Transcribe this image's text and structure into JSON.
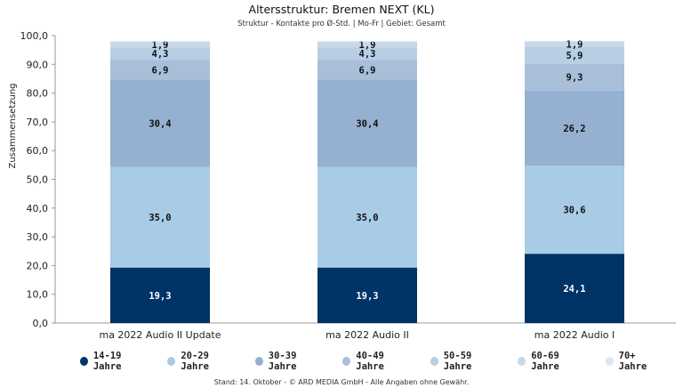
{
  "chart_data": {
    "type": "bar",
    "stacked": true,
    "title": "Altersstruktur: Bremen NEXT (KL)",
    "subtitle": "Struktur - Kontakte pro Ø-Std. | Mo-Fr | Gebiet: Gesamt",
    "ylabel": "Zusammensetzung",
    "xlabel": "",
    "ylim": [
      0,
      100
    ],
    "yticks": [
      "0,0",
      "10,0",
      "20,0",
      "30,0",
      "40,0",
      "50,0",
      "60,0",
      "70,0",
      "80,0",
      "90,0",
      "100,0"
    ],
    "categories": [
      "ma 2022 Audio II Update",
      "ma 2022 Audio II",
      "ma 2022 Audio I"
    ],
    "series": [
      {
        "name": "14-19 Jahre",
        "color": "#003366",
        "values": [
          19.3,
          19.3,
          24.1
        ],
        "labels": [
          "19,3",
          "19,3",
          "24,1"
        ]
      },
      {
        "name": "20-29 Jahre",
        "color": "#a8cbe6",
        "values": [
          35.0,
          35.0,
          30.6
        ],
        "labels": [
          "35,0",
          "35,0",
          "30,6"
        ]
      },
      {
        "name": "30-39 Jahre",
        "color": "#95b0d0",
        "values": [
          30.4,
          30.4,
          26.2
        ],
        "labels": [
          "30,4",
          "30,4",
          "26,2"
        ]
      },
      {
        "name": "40-49 Jahre",
        "color": "#a9bfd9",
        "values": [
          6.9,
          6.9,
          9.3
        ],
        "labels": [
          "6,9",
          "6,9",
          "9,3"
        ]
      },
      {
        "name": "50-59 Jahre",
        "color": "#b8cee4",
        "values": [
          4.3,
          4.3,
          5.9
        ],
        "labels": [
          "4,3",
          "4,3",
          "5,9"
        ]
      },
      {
        "name": "60-69 Jahre",
        "color": "#c8d8ea",
        "values": [
          1.9,
          1.9,
          1.9
        ],
        "labels": [
          "1,9",
          "1,9",
          "1,9"
        ]
      },
      {
        "name": "70+ Jahre",
        "color": "#dce6f1",
        "values": [
          0.3,
          0.3,
          0.1
        ],
        "labels": [
          "",
          "",
          ""
        ]
      }
    ],
    "grid": false,
    "legend_position": "bottom"
  },
  "footer": "Stand: 14. Oktober - © ARD MEDIA GmbH - Alle Angaben ohne Gewähr."
}
